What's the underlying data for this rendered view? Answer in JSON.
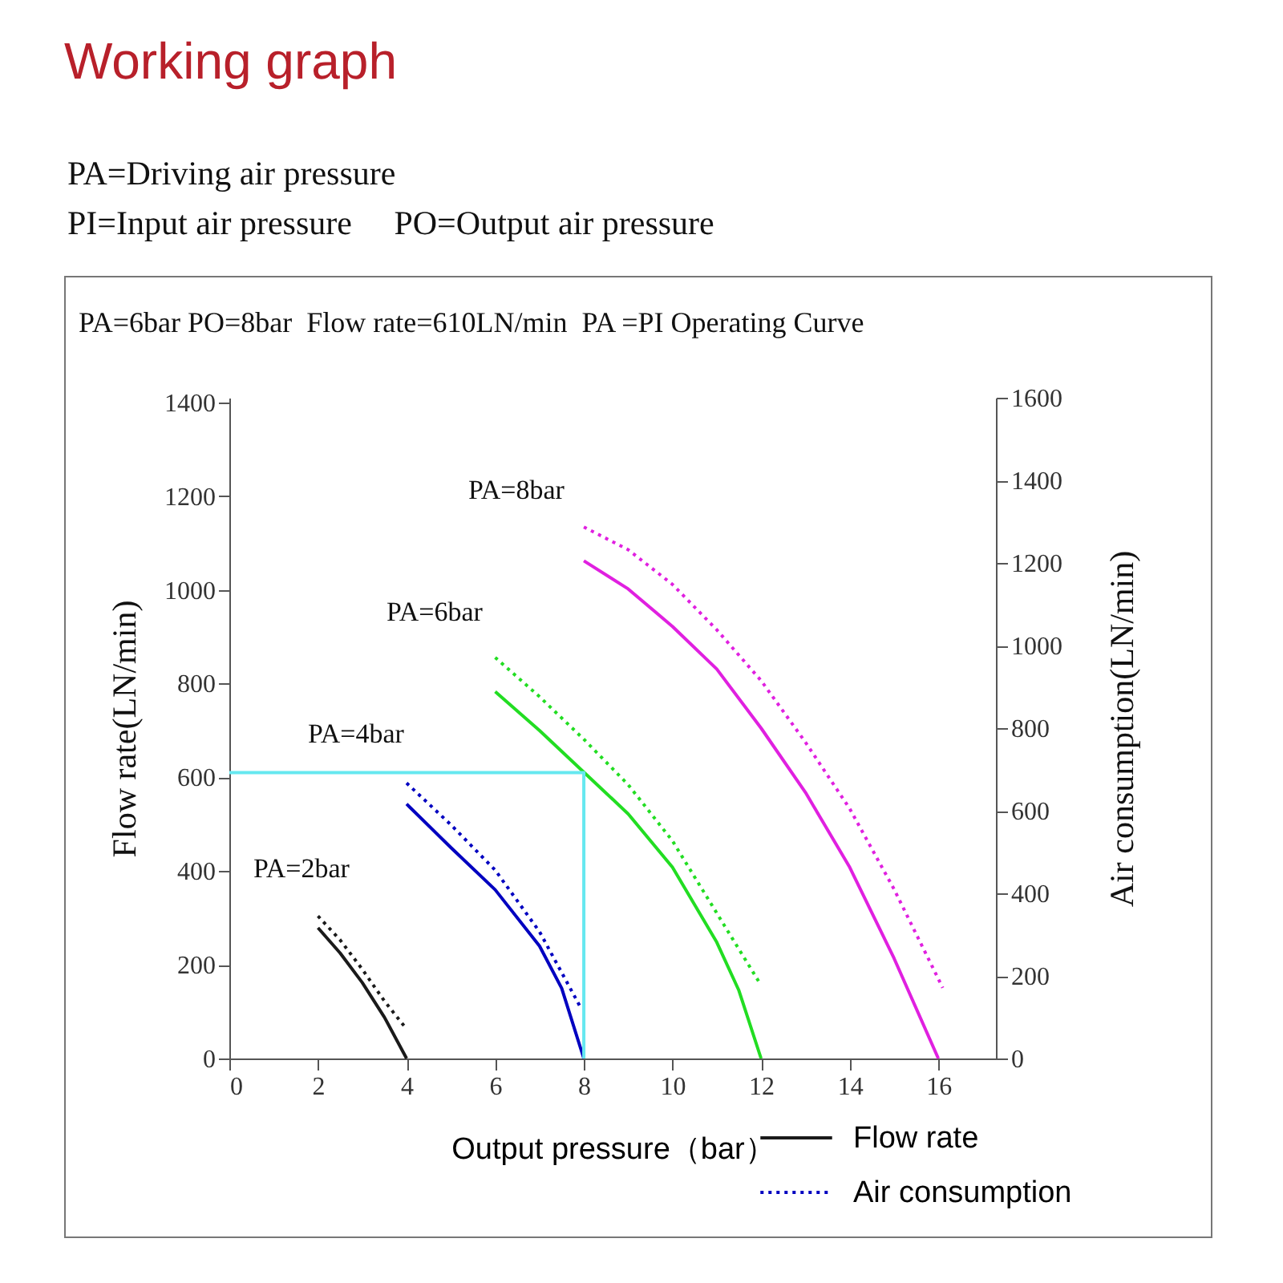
{
  "chart_data": {
    "type": "line",
    "title": "Working graph",
    "xlabel": "Output pressure（bar）",
    "ylabel": "Flow rate(LN/min)",
    "y2label": "Air consumption(LN/min)",
    "xlim": [
      0,
      17.3
    ],
    "xticks": [
      0,
      2,
      4,
      6,
      8,
      10,
      12,
      14,
      16
    ],
    "ylim": [
      0,
      1410
    ],
    "yticks": [
      0,
      200,
      400,
      600,
      800,
      1000,
      1200,
      1400
    ],
    "y2lim": [
      0,
      1600
    ],
    "y2ticks": [
      0,
      200,
      400,
      600,
      800,
      1000,
      1200,
      1400,
      1600
    ],
    "grid": false,
    "marker": "none",
    "legend": "bottom right",
    "series": [
      {
        "name": "Flow rate",
        "color": "#1a1a1a",
        "line_style": "solid",
        "x": [
          2,
          2.5,
          3,
          3.5,
          4
        ],
        "values": [
          279,
          225,
          162,
          88,
          0
        ]
      },
      {
        "name": "Air consumption",
        "color": "#0000c0",
        "line_style": "dotted",
        "axis": "y2",
        "x": [
          4,
          5,
          6,
          7,
          7.95
        ],
        "values": [
          667,
          566,
          456,
          307,
          119
        ]
      },
      {
        "color": "#1a1a1a",
        "line_style": "dotted",
        "axis": "y2",
        "x": [
          2,
          2.5,
          3,
          3.5,
          3.95
        ],
        "values": [
          345,
          287,
          216,
          139,
          78
        ]
      },
      {
        "color": "#0000c0",
        "line_style": "solid",
        "x": [
          4,
          5,
          6,
          7,
          7.5,
          8
        ],
        "values": [
          543,
          450,
          360,
          240,
          150,
          0
        ]
      },
      {
        "color": "#22dd22",
        "line_style": "solid",
        "x": [
          6,
          7,
          8,
          9,
          10,
          11,
          11.5,
          12
        ],
        "values": [
          783,
          700,
          611,
          522,
          408,
          248,
          145,
          0
        ]
      },
      {
        "color": "#22dd22",
        "line_style": "dotted",
        "axis": "y2",
        "x": [
          6,
          7,
          8,
          9,
          10,
          11,
          11.95
        ],
        "values": [
          971,
          876,
          773,
          663,
          527,
          352,
          186
        ]
      },
      {
        "color": "#e020e0",
        "line_style": "solid",
        "x": [
          8,
          9,
          10,
          11,
          12,
          13,
          14,
          15,
          16
        ],
        "values": [
          1062,
          1002,
          922,
          831,
          705,
          568,
          408,
          214,
          0
        ]
      },
      {
        "color": "#e020e0",
        "line_style": "dotted",
        "axis": "y2",
        "x": [
          8,
          9,
          10,
          11,
          12,
          13,
          14,
          15,
          16.1
        ],
        "values": [
          1287,
          1232,
          1148,
          1038,
          915,
          766,
          605,
          410,
          171
        ]
      },
      {
        "color": "#66e8f0",
        "line_style": "solid",
        "x": [
          0,
          8,
          8
        ],
        "values": [
          610,
          610,
          0
        ]
      }
    ],
    "annotations": [
      "PA=2bar",
      "PA=4bar",
      "PA=6bar",
      "PA=8bar",
      "PA=Driving air pressure",
      "PI=Input air pressure     PO=Output air pressure",
      "PA=6bar PO=8bar  Flow rate=610LN/min  PA =PI Operating Curve"
    ]
  }
}
